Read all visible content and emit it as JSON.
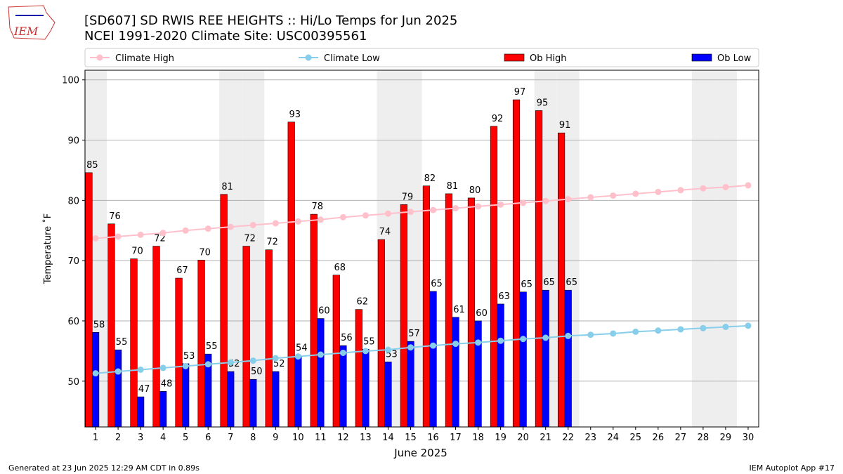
{
  "logo_text": "IEM",
  "footer_left": "Generated at 23 Jun 2025 12:29 AM CDT in 0.89s",
  "footer_right": "IEM Autoplot App #17",
  "chart_data": {
    "type": "bar",
    "title": "[SD607] SD RWIS REE HEIGHTS :: Hi/Lo Temps for Jun 2025",
    "subtitle": "NCEI 1991-2020 Climate Site: USC00395561",
    "x_label": "June 2025",
    "y_label": "Temperature ˚F",
    "x": [
      1,
      2,
      3,
      4,
      5,
      6,
      7,
      8,
      9,
      10,
      11,
      12,
      13,
      14,
      15,
      16,
      17,
      18,
      19,
      20,
      21,
      22,
      23,
      24,
      25,
      26,
      27,
      28,
      29,
      30
    ],
    "xlim": [
      0.53,
      30.47
    ],
    "xticks": [
      1,
      2,
      3,
      4,
      5,
      6,
      7,
      8,
      9,
      10,
      11,
      12,
      13,
      14,
      15,
      16,
      17,
      18,
      19,
      20,
      21,
      22,
      23,
      24,
      25,
      26,
      27,
      28,
      29,
      30
    ],
    "ylim": [
      42.4,
      101.6
    ],
    "yticks": [
      50,
      60,
      70,
      80,
      90,
      100
    ],
    "grid": true,
    "shaded_x": [
      1,
      7,
      8,
      14,
      15,
      21,
      22,
      28,
      29
    ],
    "shade_color": "#eeeeee",
    "series": [
      {
        "name": "Climate High",
        "type": "line",
        "color": "#ffc0cb",
        "values": [
          73.7,
          74.0,
          74.3,
          74.6,
          75.0,
          75.3,
          75.6,
          75.9,
          76.2,
          76.5,
          76.8,
          77.2,
          77.5,
          77.8,
          78.1,
          78.4,
          78.7,
          79.0,
          79.3,
          79.6,
          79.9,
          80.2,
          80.5,
          80.8,
          81.1,
          81.4,
          81.7,
          82.0,
          82.2,
          82.5
        ]
      },
      {
        "name": "Climate Low",
        "type": "line",
        "color": "#87ceeb",
        "values": [
          51.3,
          51.6,
          51.9,
          52.2,
          52.5,
          52.8,
          53.1,
          53.4,
          53.8,
          54.1,
          54.4,
          54.7,
          55.0,
          55.2,
          55.6,
          55.9,
          56.2,
          56.4,
          56.7,
          57.0,
          57.2,
          57.5,
          57.7,
          57.9,
          58.2,
          58.4,
          58.6,
          58.8,
          59.0,
          59.2
        ]
      },
      {
        "name": "Ob High",
        "type": "bar",
        "color": "#ff0000",
        "values": [
          84.6,
          76.1,
          70.3,
          72.4,
          67.1,
          70.1,
          81.0,
          72.4,
          71.8,
          93.0,
          77.7,
          67.6,
          61.9,
          73.5,
          79.3,
          82.4,
          81.1,
          80.4,
          92.3,
          96.7,
          94.9,
          91.2,
          null,
          null,
          null,
          null,
          null,
          null,
          null,
          null
        ],
        "value_labels": [
          "85",
          "76",
          "70",
          "72",
          "67",
          "70",
          "81",
          "72",
          "72",
          "93",
          "78",
          "68",
          "62",
          "74",
          "79",
          "82",
          "81",
          "80",
          "92",
          "97",
          "95",
          "91",
          null,
          null,
          null,
          null,
          null,
          null,
          null,
          null
        ]
      },
      {
        "name": "Ob Low",
        "type": "bar",
        "color": "#0000ff",
        "values": [
          58.1,
          55.2,
          47.4,
          48.3,
          52.9,
          54.5,
          51.6,
          50.3,
          51.6,
          54.2,
          60.4,
          55.9,
          55.3,
          53.2,
          56.6,
          64.9,
          60.6,
          60.0,
          62.8,
          64.8,
          65.1,
          65.1,
          null,
          null,
          null,
          null,
          null,
          null,
          null,
          null
        ],
        "value_labels": [
          "58",
          "55",
          "47",
          "48",
          "53",
          "55",
          "52",
          "50",
          "52",
          "54",
          "60",
          "56",
          "55",
          "53",
          "57",
          "65",
          "61",
          "60",
          "63",
          "65",
          "65",
          "65",
          null,
          null,
          null,
          null,
          null,
          null,
          null,
          null
        ]
      }
    ]
  }
}
